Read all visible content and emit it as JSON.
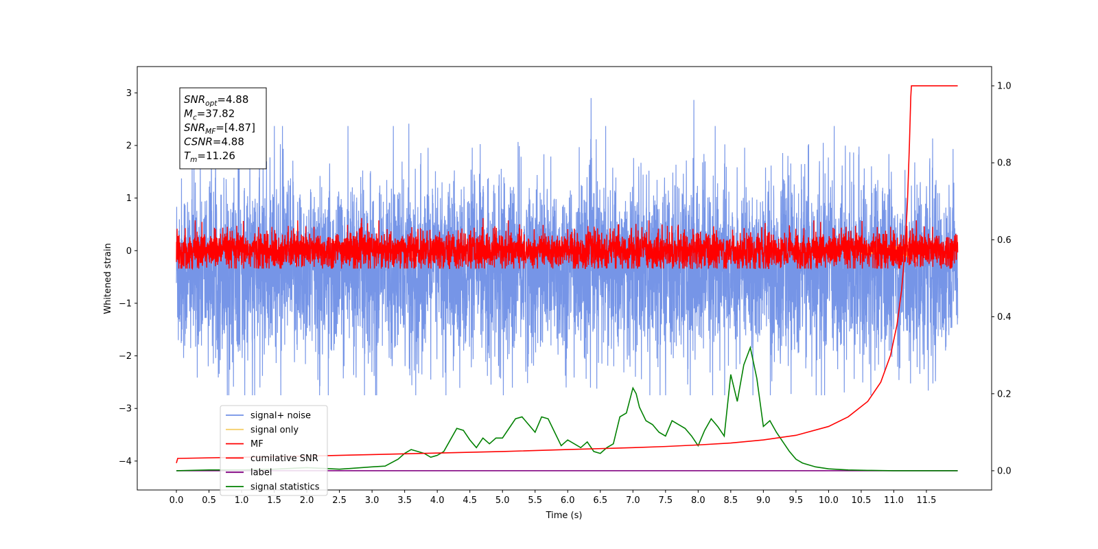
{
  "chart_data": {
    "type": "line",
    "xlabel": "Time (s)",
    "ylabel": "Whitened strain",
    "xlim": [
      -0.6,
      12.5
    ],
    "ylim": [
      -4.55,
      3.5
    ],
    "y2lim": [
      -0.05,
      1.05
    ],
    "x_ticks": [
      "0.0",
      "0.5",
      "1.0",
      "1.5",
      "2.0",
      "2.5",
      "3.0",
      "3.5",
      "4.0",
      "4.5",
      "5.0",
      "5.5",
      "6.0",
      "6.5",
      "7.0",
      "7.5",
      "8.0",
      "8.5",
      "9.0",
      "9.5",
      "10.0",
      "10.5",
      "11.0",
      "11.5"
    ],
    "y_ticks": [
      "3",
      "2",
      "1",
      "0",
      "−1",
      "−2",
      "−3",
      "−4"
    ],
    "y2_ticks": [
      "1.0",
      "0.8",
      "0.6",
      "0.4",
      "0.2",
      "0.0"
    ],
    "colors": {
      "signal_noise": "#6f8fe6",
      "signal_only": "#f5cf6a",
      "mf": "#ff0000",
      "cumulative_snr": "#ff0000",
      "label": "#800080",
      "signal_statistics": "#008000"
    },
    "legend": {
      "placement": "lower-left",
      "entries": [
        "signal+ noise",
        "signal only",
        "MF",
        "cumilative SNR",
        "label",
        "signal statistics"
      ]
    },
    "annotation": {
      "lines": [
        {
          "sym": "SNR",
          "sub": "opt",
          "val": "=4.88"
        },
        {
          "sym": "M",
          "sub": "c",
          "val": "=37.82"
        },
        {
          "sym": "SNR",
          "sub": "MF",
          "val": "=[4.87]"
        },
        {
          "sym": "CSNR",
          "sub": "",
          "val": "=4.88"
        },
        {
          "sym": "T",
          "sub": "m",
          "val": "=11.26"
        }
      ]
    },
    "series": [
      {
        "name": "signal+ noise",
        "kind": "noise",
        "axis": "left",
        "t_end": 11.98,
        "mean": -0.35,
        "sd": 0.85,
        "pos_extreme": 3.1,
        "neg_extreme": -2.75
      },
      {
        "name": "signal only",
        "kind": "chirp",
        "axis": "left",
        "t_merge": 11.26
      },
      {
        "name": "MF",
        "kind": "noise",
        "axis": "left",
        "t_end": 11.98,
        "mean": 0.0,
        "sd": 0.18
      },
      {
        "name": "cumilative SNR",
        "axis": "right",
        "x": [
          0.0,
          0.02,
          1.0,
          2.0,
          3.0,
          4.0,
          5.0,
          6.0,
          7.0,
          7.5,
          8.0,
          8.5,
          9.0,
          9.5,
          10.0,
          10.3,
          10.6,
          10.8,
          10.95,
          11.05,
          11.12,
          11.17,
          11.21,
          11.24,
          11.26,
          11.27,
          11.5,
          11.98
        ],
        "y": [
          0.02,
          0.032,
          0.035,
          0.038,
          0.042,
          0.046,
          0.05,
          0.055,
          0.06,
          0.063,
          0.067,
          0.072,
          0.08,
          0.092,
          0.115,
          0.14,
          0.18,
          0.23,
          0.3,
          0.38,
          0.47,
          0.57,
          0.7,
          0.85,
          0.97,
          1.0,
          1.0,
          1.0
        ]
      },
      {
        "name": "label",
        "axis": "right",
        "x": [
          0.0,
          11.98
        ],
        "y": [
          0.0,
          0.0
        ]
      },
      {
        "name": "signal statistics",
        "axis": "right",
        "x": [
          0.0,
          0.5,
          1.0,
          1.5,
          2.0,
          2.5,
          3.0,
          3.2,
          3.4,
          3.5,
          3.6,
          3.7,
          3.8,
          3.9,
          4.0,
          4.1,
          4.2,
          4.3,
          4.4,
          4.5,
          4.6,
          4.7,
          4.8,
          4.9,
          5.0,
          5.1,
          5.2,
          5.3,
          5.4,
          5.5,
          5.6,
          5.7,
          5.8,
          5.9,
          6.0,
          6.1,
          6.2,
          6.3,
          6.4,
          6.5,
          6.6,
          6.7,
          6.8,
          6.9,
          7.0,
          7.05,
          7.1,
          7.2,
          7.3,
          7.4,
          7.5,
          7.6,
          7.7,
          7.8,
          7.9,
          8.0,
          8.1,
          8.2,
          8.3,
          8.4,
          8.5,
          8.6,
          8.7,
          8.8,
          8.9,
          9.0,
          9.1,
          9.2,
          9.3,
          9.4,
          9.5,
          9.6,
          9.8,
          10.0,
          10.3,
          10.6,
          11.0,
          11.5,
          11.98
        ],
        "y": [
          0.0,
          0.002,
          0.002,
          0.004,
          0.008,
          0.004,
          0.01,
          0.012,
          0.03,
          0.045,
          0.055,
          0.05,
          0.045,
          0.035,
          0.04,
          0.05,
          0.08,
          0.11,
          0.105,
          0.08,
          0.06,
          0.085,
          0.07,
          0.085,
          0.085,
          0.11,
          0.135,
          0.14,
          0.12,
          0.1,
          0.14,
          0.135,
          0.1,
          0.065,
          0.08,
          0.07,
          0.06,
          0.075,
          0.05,
          0.045,
          0.06,
          0.07,
          0.14,
          0.15,
          0.215,
          0.2,
          0.165,
          0.13,
          0.12,
          0.1,
          0.09,
          0.13,
          0.12,
          0.11,
          0.09,
          0.065,
          0.105,
          0.135,
          0.115,
          0.09,
          0.25,
          0.18,
          0.275,
          0.32,
          0.24,
          0.115,
          0.13,
          0.1,
          0.075,
          0.05,
          0.03,
          0.02,
          0.01,
          0.005,
          0.002,
          0.001,
          0.0,
          0.0,
          0.0
        ]
      }
    ]
  }
}
